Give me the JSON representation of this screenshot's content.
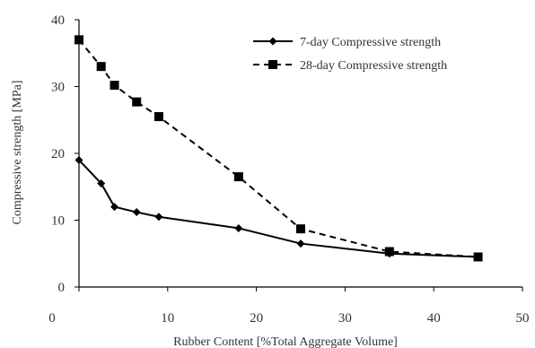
{
  "chart_data": {
    "type": "line",
    "title": "",
    "xlabel": "Rubber Content [%Total Aggregate  Volume]",
    "ylabel": "Compressive strength [MPa]",
    "xlim": [
      0,
      50
    ],
    "ylim": [
      0,
      40
    ],
    "xticks": [
      0,
      10,
      20,
      30,
      40,
      50
    ],
    "yticks": [
      0,
      10,
      20,
      30,
      40
    ],
    "grid": false,
    "legend_position": "top-right",
    "series": [
      {
        "name": "7-day Compressive strength",
        "line_style": "solid",
        "marker": "diamond",
        "color": "#000000",
        "x": [
          0,
          2.5,
          4,
          6.5,
          9,
          18,
          25,
          35,
          45
        ],
        "y": [
          19,
          15.5,
          12,
          11.2,
          10.5,
          8.8,
          6.5,
          5,
          4.5
        ]
      },
      {
        "name": "28-day Compressive strength",
        "line_style": "dashed",
        "marker": "square",
        "color": "#000000",
        "x": [
          0,
          2.5,
          4,
          6.5,
          9,
          18,
          25,
          35,
          45
        ],
        "y": [
          37,
          33,
          30.2,
          27.7,
          25.5,
          16.5,
          8.7,
          5.3,
          4.5
        ]
      }
    ]
  }
}
